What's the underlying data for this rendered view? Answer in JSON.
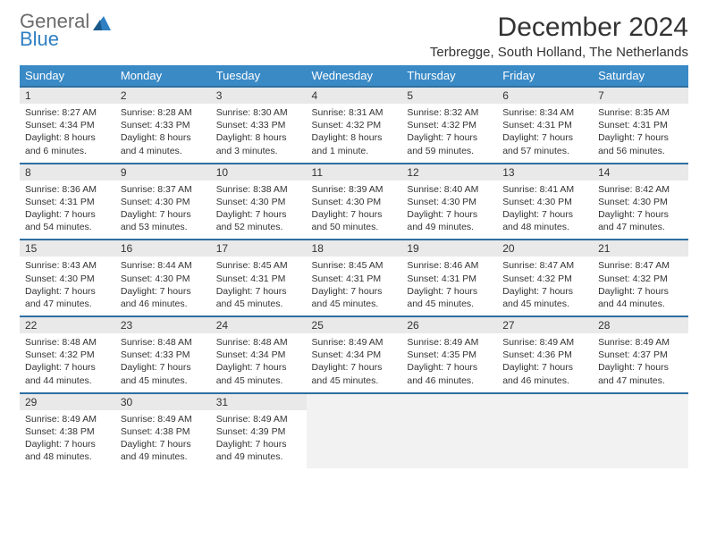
{
  "logo": {
    "line1": "General",
    "line2": "Blue"
  },
  "title": "December 2024",
  "location": "Terbregge, South Holland, The Netherlands",
  "day_headers": [
    "Sunday",
    "Monday",
    "Tuesday",
    "Wednesday",
    "Thursday",
    "Friday",
    "Saturday"
  ],
  "colors": {
    "header_bg": "#3a8ac6",
    "row_border": "#2f6fa0",
    "daynum_bg": "#e9e9e9",
    "logo_grey": "#6b6b6b",
    "logo_blue": "#2f7fc2"
  },
  "fonts": {
    "title_size": 30,
    "location_size": 15,
    "header_size": 13,
    "body_size": 10.5
  },
  "weeks": [
    [
      {
        "n": "1",
        "sr": "8:27 AM",
        "ss": "4:34 PM",
        "dh": "8",
        "dm": "6"
      },
      {
        "n": "2",
        "sr": "8:28 AM",
        "ss": "4:33 PM",
        "dh": "8",
        "dm": "4"
      },
      {
        "n": "3",
        "sr": "8:30 AM",
        "ss": "4:33 PM",
        "dh": "8",
        "dm": "3"
      },
      {
        "n": "4",
        "sr": "8:31 AM",
        "ss": "4:32 PM",
        "dh": "8",
        "dm": "1"
      },
      {
        "n": "5",
        "sr": "8:32 AM",
        "ss": "4:32 PM",
        "dh": "7",
        "dm": "59"
      },
      {
        "n": "6",
        "sr": "8:34 AM",
        "ss": "4:31 PM",
        "dh": "7",
        "dm": "57"
      },
      {
        "n": "7",
        "sr": "8:35 AM",
        "ss": "4:31 PM",
        "dh": "7",
        "dm": "56"
      }
    ],
    [
      {
        "n": "8",
        "sr": "8:36 AM",
        "ss": "4:31 PM",
        "dh": "7",
        "dm": "54"
      },
      {
        "n": "9",
        "sr": "8:37 AM",
        "ss": "4:30 PM",
        "dh": "7",
        "dm": "53"
      },
      {
        "n": "10",
        "sr": "8:38 AM",
        "ss": "4:30 PM",
        "dh": "7",
        "dm": "52"
      },
      {
        "n": "11",
        "sr": "8:39 AM",
        "ss": "4:30 PM",
        "dh": "7",
        "dm": "50"
      },
      {
        "n": "12",
        "sr": "8:40 AM",
        "ss": "4:30 PM",
        "dh": "7",
        "dm": "49"
      },
      {
        "n": "13",
        "sr": "8:41 AM",
        "ss": "4:30 PM",
        "dh": "7",
        "dm": "48"
      },
      {
        "n": "14",
        "sr": "8:42 AM",
        "ss": "4:30 PM",
        "dh": "7",
        "dm": "47"
      }
    ],
    [
      {
        "n": "15",
        "sr": "8:43 AM",
        "ss": "4:30 PM",
        "dh": "7",
        "dm": "47"
      },
      {
        "n": "16",
        "sr": "8:44 AM",
        "ss": "4:30 PM",
        "dh": "7",
        "dm": "46"
      },
      {
        "n": "17",
        "sr": "8:45 AM",
        "ss": "4:31 PM",
        "dh": "7",
        "dm": "45"
      },
      {
        "n": "18",
        "sr": "8:45 AM",
        "ss": "4:31 PM",
        "dh": "7",
        "dm": "45"
      },
      {
        "n": "19",
        "sr": "8:46 AM",
        "ss": "4:31 PM",
        "dh": "7",
        "dm": "45"
      },
      {
        "n": "20",
        "sr": "8:47 AM",
        "ss": "4:32 PM",
        "dh": "7",
        "dm": "45"
      },
      {
        "n": "21",
        "sr": "8:47 AM",
        "ss": "4:32 PM",
        "dh": "7",
        "dm": "44"
      }
    ],
    [
      {
        "n": "22",
        "sr": "8:48 AM",
        "ss": "4:32 PM",
        "dh": "7",
        "dm": "44"
      },
      {
        "n": "23",
        "sr": "8:48 AM",
        "ss": "4:33 PM",
        "dh": "7",
        "dm": "45"
      },
      {
        "n": "24",
        "sr": "8:48 AM",
        "ss": "4:34 PM",
        "dh": "7",
        "dm": "45"
      },
      {
        "n": "25",
        "sr": "8:49 AM",
        "ss": "4:34 PM",
        "dh": "7",
        "dm": "45"
      },
      {
        "n": "26",
        "sr": "8:49 AM",
        "ss": "4:35 PM",
        "dh": "7",
        "dm": "46"
      },
      {
        "n": "27",
        "sr": "8:49 AM",
        "ss": "4:36 PM",
        "dh": "7",
        "dm": "46"
      },
      {
        "n": "28",
        "sr": "8:49 AM",
        "ss": "4:37 PM",
        "dh": "7",
        "dm": "47"
      }
    ],
    [
      {
        "n": "29",
        "sr": "8:49 AM",
        "ss": "4:38 PM",
        "dh": "7",
        "dm": "48"
      },
      {
        "n": "30",
        "sr": "8:49 AM",
        "ss": "4:38 PM",
        "dh": "7",
        "dm": "49"
      },
      {
        "n": "31",
        "sr": "8:49 AM",
        "ss": "4:39 PM",
        "dh": "7",
        "dm": "49"
      },
      null,
      null,
      null,
      null
    ]
  ]
}
